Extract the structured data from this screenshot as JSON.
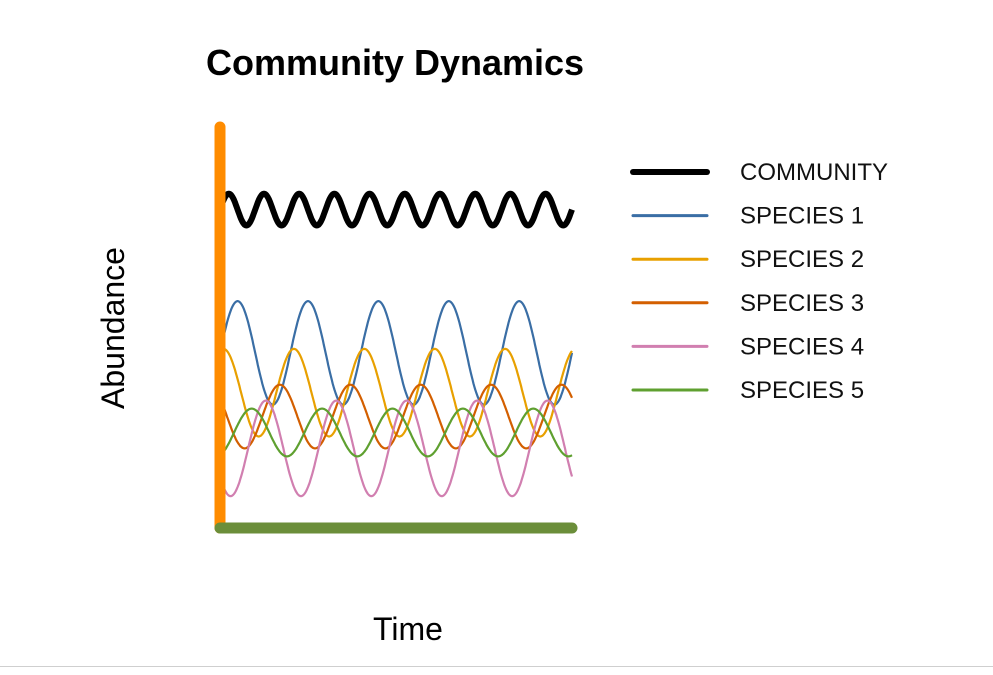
{
  "chart_data": {
    "type": "line",
    "title": "Community Dynamics",
    "xlabel": "Time",
    "ylabel": "Abundance",
    "xlim": [
      0,
      10
    ],
    "ylim": [
      0,
      10
    ],
    "grid": false,
    "legend_position": "right",
    "axis_colors": {
      "y": "#ff8c00",
      "x": "#6b8e3a"
    },
    "series": [
      {
        "name": "COMMUNITY",
        "color": "#000000",
        "baseline": 8.0,
        "amplitude": 0.4,
        "period": 1.0,
        "phase": 0.0
      },
      {
        "name": "SPECIES 1",
        "color": "#3a6ea5",
        "baseline": 4.4,
        "amplitude": 1.3,
        "period": 2.0,
        "phase": 0.0
      },
      {
        "name": "SPECIES 2",
        "color": "#e8a000",
        "baseline": 3.4,
        "amplitude": 1.1,
        "period": 2.0,
        "phase": 1.257
      },
      {
        "name": "SPECIES 3",
        "color": "#d35f00",
        "baseline": 2.8,
        "amplitude": 0.8,
        "period": 2.0,
        "phase": 2.513
      },
      {
        "name": "SPECIES 4",
        "color": "#d17fb0",
        "baseline": 2.0,
        "amplitude": 1.2,
        "period": 2.0,
        "phase": 3.77
      },
      {
        "name": "SPECIES 5",
        "color": "#5fa030",
        "baseline": 2.4,
        "amplitude": 0.6,
        "period": 2.0,
        "phase": 5.027
      }
    ]
  }
}
